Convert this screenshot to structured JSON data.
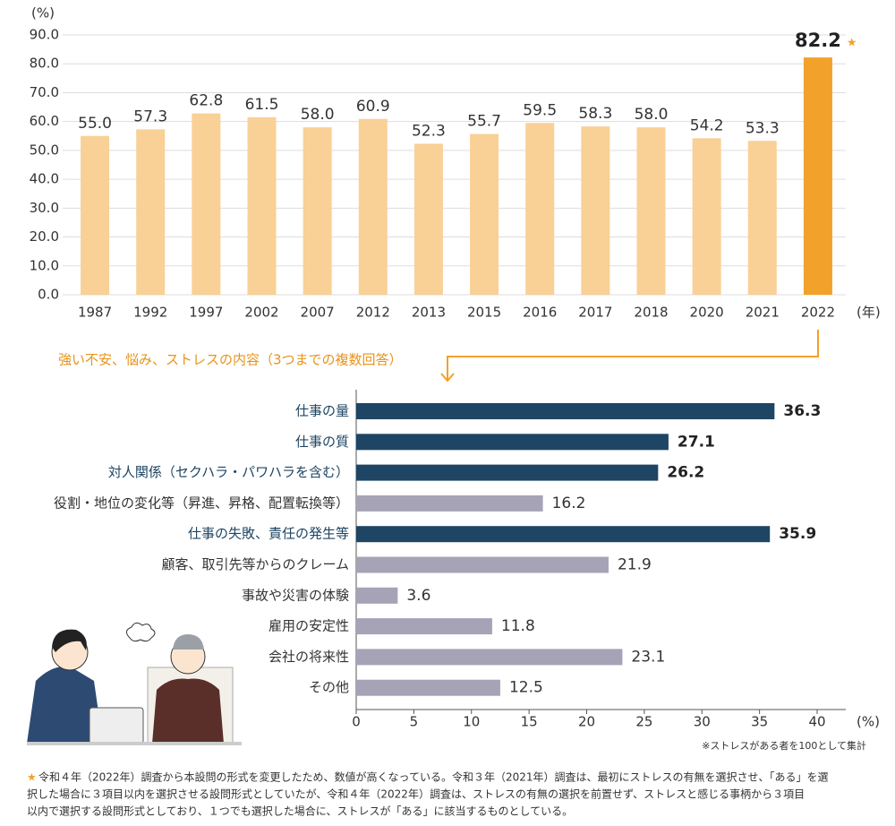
{
  "chart_data": [
    {
      "type": "bar",
      "y_unit": "(%)",
      "x_unit": "(年)",
      "star": "★",
      "categories": [
        "1987",
        "1992",
        "1997",
        "2002",
        "2007",
        "2012",
        "2013",
        "2015",
        "2016",
        "2017",
        "2018",
        "2020",
        "2021",
        "2022"
      ],
      "values": [
        55.0,
        57.3,
        62.8,
        61.5,
        58.0,
        60.9,
        52.3,
        55.7,
        59.5,
        58.3,
        58.0,
        54.2,
        53.3,
        82.2
      ],
      "value_labels": [
        "55.0",
        "57.3",
        "62.8",
        "61.5",
        "58.0",
        "60.9",
        "52.3",
        "55.7",
        "59.5",
        "58.3",
        "58.0",
        "54.2",
        "53.3",
        "82.2"
      ],
      "colors": [
        "#f9d096",
        "#f9d096",
        "#f9d096",
        "#f9d096",
        "#f9d096",
        "#f9d096",
        "#f9d096",
        "#f9d096",
        "#f9d096",
        "#f9d096",
        "#f9d096",
        "#f9d096",
        "#f9d096",
        "#f2a12a"
      ],
      "ylim": [
        0,
        90
      ],
      "yticks": [
        {
          "value": 0,
          "label": "0.0"
        },
        {
          "value": 10,
          "label": "10.0"
        },
        {
          "value": 20,
          "label": "20.0"
        },
        {
          "value": 30,
          "label": "30.0"
        },
        {
          "value": 40,
          "label": "40.0"
        },
        {
          "value": 50,
          "label": "50.0"
        },
        {
          "value": 60,
          "label": "60.0"
        },
        {
          "value": 70,
          "label": "70.0"
        },
        {
          "value": 80,
          "label": "80.0"
        },
        {
          "value": 90,
          "label": "90.0"
        }
      ],
      "grid": true
    },
    {
      "type": "barh",
      "title": "強い不安、悩み、ストレスの内容（3つまでの複数回答）",
      "x_unit": "(%)",
      "note": "※ストレスがある者を100として集計",
      "categories": [
        "仕事の量",
        "仕事の質",
        "対人関係（セクハラ・パワハラを含む）",
        "役割・地位の変化等（昇進、昇格、配置転換等）",
        "仕事の失敗、責任の発生等",
        "顧客、取引先等からのクレーム",
        "事故や災害の体験",
        "雇用の安定性",
        "会社の将来性",
        "その他"
      ],
      "values": [
        36.3,
        27.1,
        26.2,
        16.2,
        35.9,
        21.9,
        3.6,
        11.8,
        23.1,
        12.5
      ],
      "colors": [
        "#1e4563",
        "#1e4563",
        "#1e4563",
        "#a5a3b5",
        "#1e4563",
        "#a5a3b5",
        "#a5a3b5",
        "#a5a3b5",
        "#a5a3b5",
        "#a5a3b5"
      ],
      "label_colors": [
        "#1e4563",
        "#1e4563",
        "#1e4563",
        "#333333",
        "#1e4563",
        "#333333",
        "#333333",
        "#333333",
        "#333333",
        "#333333"
      ],
      "xlim": [
        0,
        40
      ],
      "xticks": [
        0,
        5,
        10,
        15,
        20,
        25,
        30,
        35,
        40
      ]
    }
  ],
  "footnote": {
    "mark": "★",
    "lines": [
      "令和４年（2022年）調査から本設問の形式を変更したため、数値が高くなっている。令和３年（2021年）調査は、最初にストレスの有無を選択させ、「ある」を選",
      "択した場合に３項目以内を選択させる設問形式としていたが、令和４年（2022年）調査は、ストレスの有無の選択を前置せず、ストレスと感じる事柄から３項目",
      "以内で選択する設問形式としており、１つでも選択した場合に、ストレスが「ある」に該当するものとしている。"
    ]
  }
}
